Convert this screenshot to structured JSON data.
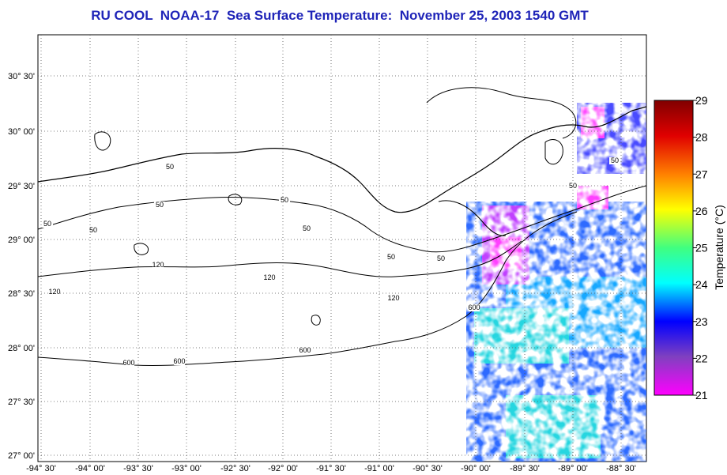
{
  "title": "RU COOL  NOAA-17  Sea Surface Temperature:  November 25, 2003 1540 GMT",
  "map": {
    "lat_labels": [
      "30° 30'",
      "30° 00'",
      "29° 30'",
      "29° 00'",
      "28° 30'",
      "28° 00'",
      "27° 30'",
      "27° 00'"
    ],
    "lon_labels": [
      "-94° 30'",
      "-94° 00'",
      "-93° 30'",
      "-93° 00'",
      "-92° 30'",
      "-92° 00'",
      "-91° 30'",
      "-91° 00'",
      "-90° 30'",
      "-90° 00'",
      "-89° 30'",
      "-89° 00'",
      "-88° 30'"
    ],
    "contour_labels": [
      "50",
      "50",
      "50",
      "50",
      "50",
      "50",
      "50",
      "50",
      "50",
      "120",
      "120",
      "120",
      "120",
      "600",
      "600",
      "600",
      "600",
      "50"
    ],
    "sst_range_c": [
      21,
      29
    ]
  },
  "colorbar": {
    "title": "Temperature (°C)",
    "ticks": [
      "29",
      "28",
      "27",
      "26",
      "25",
      "24",
      "23",
      "22",
      "21"
    ],
    "colors": [
      "#8b0000",
      "#ff0000",
      "#ff8c00",
      "#ffff00",
      "#7fff00",
      "#00ffff",
      "#0000ff",
      "#8a2be2",
      "#ff00ff"
    ]
  }
}
